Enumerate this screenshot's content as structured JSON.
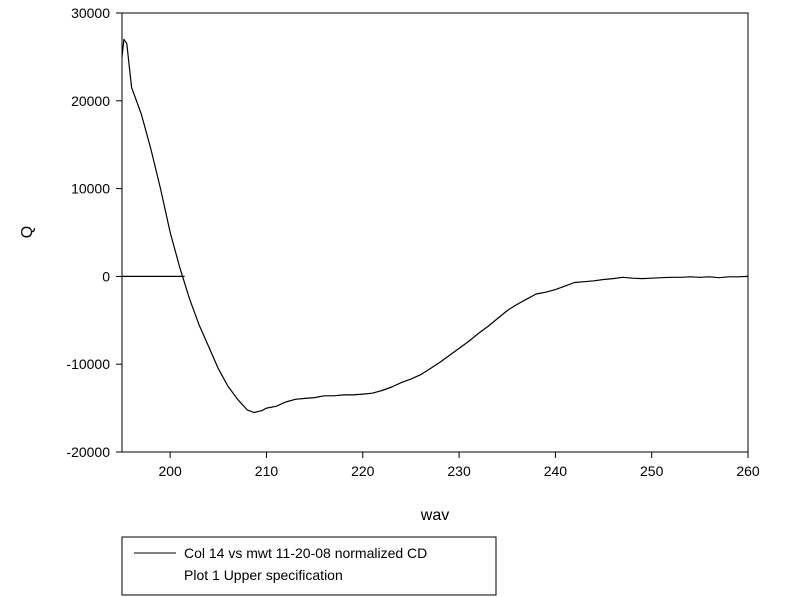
{
  "chart_data": {
    "type": "line",
    "xlabel": "wav",
    "ylabel": "Q",
    "xlim": [
      195,
      260
    ],
    "ylim": [
      -20000,
      30000
    ],
    "x_ticks": [
      200,
      210,
      220,
      230,
      240,
      250,
      260
    ],
    "y_ticks": [
      -20000,
      -10000,
      0,
      10000,
      20000,
      30000
    ],
    "x_tick_labels": [
      "200",
      "210",
      "220",
      "230",
      "240",
      "250",
      "260"
    ],
    "y_tick_labels": [
      "-20000",
      "-10000",
      "0",
      "10000",
      "20000",
      "30000"
    ],
    "grid": false,
    "legend_position": "below",
    "series": [
      {
        "name": "Col 14 vs mwt 11-20-08 normalized CD",
        "color": "#000000",
        "points": [
          [
            195.0,
            25000
          ],
          [
            195.2,
            27000
          ],
          [
            195.5,
            26500
          ],
          [
            196.0,
            21500
          ],
          [
            197.0,
            18500
          ],
          [
            198.0,
            14500
          ],
          [
            199.0,
            10000
          ],
          [
            200.0,
            5000
          ],
          [
            201.0,
            1000
          ],
          [
            202.0,
            -2500
          ],
          [
            203.0,
            -5500
          ],
          [
            204.0,
            -8000
          ],
          [
            205.0,
            -10500
          ],
          [
            206.0,
            -12500
          ],
          [
            207.0,
            -14000
          ],
          [
            208.0,
            -15200
          ],
          [
            208.7,
            -15500
          ],
          [
            209.5,
            -15300
          ],
          [
            210.0,
            -15000
          ],
          [
            211.0,
            -14800
          ],
          [
            212.0,
            -14300
          ],
          [
            213.0,
            -14000
          ],
          [
            214.0,
            -13900
          ],
          [
            215.0,
            -13800
          ],
          [
            216.0,
            -13600
          ],
          [
            217.0,
            -13600
          ],
          [
            218.0,
            -13500
          ],
          [
            219.0,
            -13500
          ],
          [
            220.0,
            -13400
          ],
          [
            221.0,
            -13300
          ],
          [
            222.0,
            -13000
          ],
          [
            223.0,
            -12600
          ],
          [
            224.0,
            -12100
          ],
          [
            225.0,
            -11700
          ],
          [
            226.0,
            -11200
          ],
          [
            227.0,
            -10500
          ],
          [
            228.0,
            -9800
          ],
          [
            229.0,
            -9000
          ],
          [
            230.0,
            -8200
          ],
          [
            231.0,
            -7400
          ],
          [
            232.0,
            -6500
          ],
          [
            233.0,
            -5700
          ],
          [
            234.0,
            -4800
          ],
          [
            235.0,
            -3900
          ],
          [
            236.0,
            -3200
          ],
          [
            237.0,
            -2600
          ],
          [
            238.0,
            -2000
          ],
          [
            239.0,
            -1800
          ],
          [
            240.0,
            -1500
          ],
          [
            241.0,
            -1100
          ],
          [
            242.0,
            -700
          ],
          [
            243.0,
            -600
          ],
          [
            244.0,
            -500
          ],
          [
            245.0,
            -350
          ],
          [
            246.0,
            -250
          ],
          [
            247.0,
            -100
          ],
          [
            248.0,
            -200
          ],
          [
            249.0,
            -250
          ],
          [
            250.0,
            -200
          ],
          [
            251.0,
            -150
          ],
          [
            252.0,
            -100
          ],
          [
            253.0,
            -100
          ],
          [
            254.0,
            -50
          ],
          [
            255.0,
            -100
          ],
          [
            256.0,
            -50
          ],
          [
            257.0,
            -150
          ],
          [
            258.0,
            -50
          ],
          [
            259.0,
            -50
          ],
          [
            260.0,
            0
          ]
        ]
      },
      {
        "name": "Plot 1 Upper specification",
        "color": "#000000",
        "points": [
          [
            195.0,
            0
          ],
          [
            201.5,
            0
          ]
        ]
      }
    ]
  }
}
